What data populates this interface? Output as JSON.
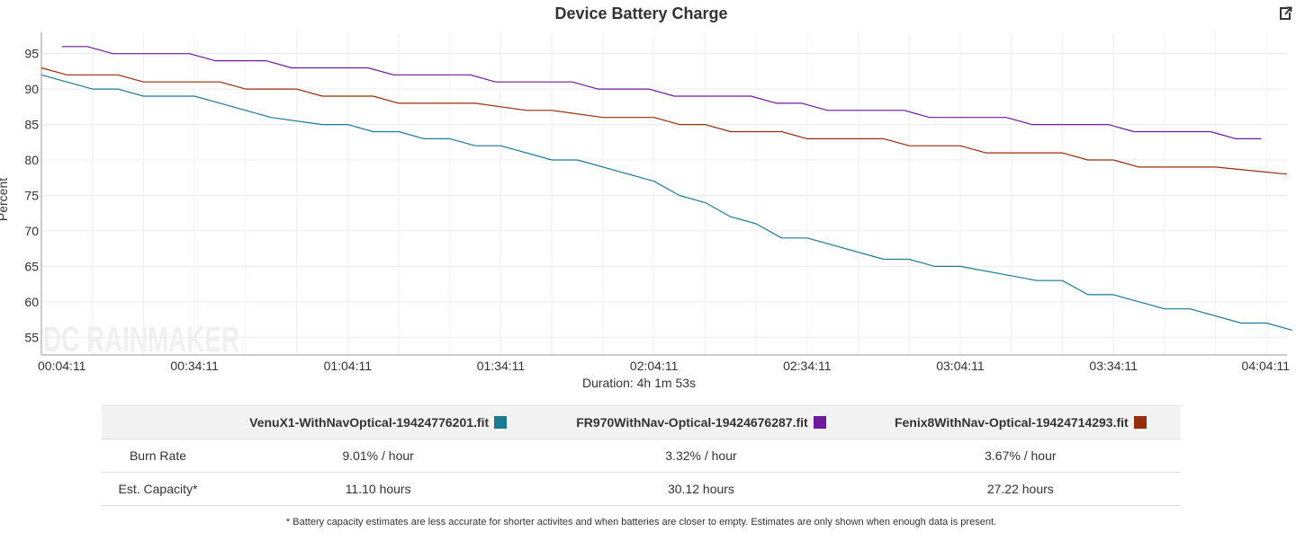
{
  "chart_data": {
    "type": "line",
    "title": "Device Battery Charge",
    "ylabel": "Percent",
    "xlabel": "Duration: 4h 1m 53s",
    "ylim": [
      52.5,
      98
    ],
    "yticks": [
      55,
      60,
      65,
      70,
      75,
      80,
      85,
      90,
      95
    ],
    "xlim": [
      "00:04:11",
      "04:08:11"
    ],
    "x_tick_labels": [
      "00:04:11",
      "00:34:11",
      "01:04:11",
      "01:34:11",
      "02:04:11",
      "02:34:11",
      "03:04:11",
      "03:34:11",
      "04:04:11"
    ],
    "grid": true,
    "watermark": "DC RAINMAKER",
    "series": [
      {
        "name": "VenuX1-WithNavOptical-19424776201.fit",
        "color": "#1d7a95",
        "points": [
          [
            "00:04:11",
            92
          ],
          [
            "00:14:11",
            90
          ],
          [
            "00:19:11",
            90
          ],
          [
            "00:24:11",
            89
          ],
          [
            "00:34:11",
            89
          ],
          [
            "00:44:11",
            87
          ],
          [
            "00:49:11",
            86
          ],
          [
            "00:59:11",
            85
          ],
          [
            "01:04:11",
            85
          ],
          [
            "01:09:11",
            84
          ],
          [
            "01:14:11",
            84
          ],
          [
            "01:19:11",
            83
          ],
          [
            "01:24:11",
            83
          ],
          [
            "01:29:11",
            82
          ],
          [
            "01:34:11",
            82
          ],
          [
            "01:44:11",
            80
          ],
          [
            "01:49:11",
            80
          ],
          [
            "02:04:11",
            77
          ],
          [
            "02:09:11",
            75
          ],
          [
            "02:14:11",
            74
          ],
          [
            "02:19:11",
            72
          ],
          [
            "02:24:11",
            71
          ],
          [
            "02:29:11",
            69
          ],
          [
            "02:34:11",
            69
          ],
          [
            "02:49:11",
            66
          ],
          [
            "02:54:11",
            66
          ],
          [
            "02:59:11",
            65
          ],
          [
            "03:04:11",
            65
          ],
          [
            "03:19:11",
            63
          ],
          [
            "03:24:11",
            63
          ],
          [
            "03:29:11",
            61
          ],
          [
            "03:34:11",
            61
          ],
          [
            "03:44:11",
            59
          ],
          [
            "03:49:11",
            59
          ],
          [
            "03:59:11",
            57
          ],
          [
            "04:04:11",
            57
          ],
          [
            "04:09:11",
            56
          ]
        ]
      },
      {
        "name": "FR970WithNav-Optical-19424676287.fit",
        "color": "#6d1a9c",
        "points": [
          [
            "00:08:11",
            96
          ],
          [
            "00:13:11",
            96
          ],
          [
            "00:18:11",
            95
          ],
          [
            "00:33:11",
            95
          ],
          [
            "00:38:11",
            94
          ],
          [
            "00:48:11",
            94
          ],
          [
            "00:53:11",
            93
          ],
          [
            "01:08:11",
            93
          ],
          [
            "01:13:11",
            92
          ],
          [
            "01:28:11",
            92
          ],
          [
            "01:33:11",
            91
          ],
          [
            "01:48:11",
            91
          ],
          [
            "01:53:11",
            90
          ],
          [
            "02:03:11",
            90
          ],
          [
            "02:08:11",
            89
          ],
          [
            "02:23:11",
            89
          ],
          [
            "02:28:11",
            88
          ],
          [
            "02:33:11",
            88
          ],
          [
            "02:38:11",
            87
          ],
          [
            "02:53:11",
            87
          ],
          [
            "02:58:11",
            86
          ],
          [
            "03:13:11",
            86
          ],
          [
            "03:18:11",
            85
          ],
          [
            "03:33:11",
            85
          ],
          [
            "03:38:11",
            84
          ],
          [
            "03:53:11",
            84
          ],
          [
            "03:58:11",
            83
          ],
          [
            "04:03:11",
            83
          ]
        ]
      },
      {
        "name": "Fenix8WithNav-Optical-19424714293.fit",
        "color": "#962d0c",
        "points": [
          [
            "00:04:11",
            93
          ],
          [
            "00:09:11",
            92
          ],
          [
            "00:19:11",
            92
          ],
          [
            "00:24:11",
            91
          ],
          [
            "00:39:11",
            91
          ],
          [
            "00:44:11",
            90
          ],
          [
            "00:54:11",
            90
          ],
          [
            "00:59:11",
            89
          ],
          [
            "01:09:11",
            89
          ],
          [
            "01:14:11",
            88
          ],
          [
            "01:29:11",
            88
          ],
          [
            "01:39:11",
            87
          ],
          [
            "01:44:11",
            87
          ],
          [
            "01:54:11",
            86
          ],
          [
            "02:04:11",
            86
          ],
          [
            "02:09:11",
            85
          ],
          [
            "02:14:11",
            85
          ],
          [
            "02:19:11",
            84
          ],
          [
            "02:29:11",
            84
          ],
          [
            "02:34:11",
            83
          ],
          [
            "02:49:11",
            83
          ],
          [
            "02:54:11",
            82
          ],
          [
            "03:04:11",
            82
          ],
          [
            "03:09:11",
            81
          ],
          [
            "03:24:11",
            81
          ],
          [
            "03:29:11",
            80
          ],
          [
            "03:34:11",
            80
          ],
          [
            "03:39:11",
            79
          ],
          [
            "03:54:11",
            79
          ],
          [
            "04:08:11",
            78
          ]
        ]
      }
    ]
  },
  "table": {
    "headers": [
      "",
      "VenuX1-WithNavOptical-19424776201.fit",
      "FR970WithNav-Optical-19424676287.fit",
      "Fenix8WithNav-Optical-19424714293.fit"
    ],
    "rows": [
      {
        "label": "Burn Rate",
        "values": [
          "9.01% / hour",
          "3.32% / hour",
          "3.67% / hour"
        ]
      },
      {
        "label": "Est. Capacity*",
        "values": [
          "11.10 hours",
          "30.12 hours",
          "27.22 hours"
        ]
      }
    ]
  },
  "footnote": "* Battery capacity estimates are less accurate for shorter activites and when batteries are closer to empty. Estimates are only shown when enough data is present.",
  "icons": {
    "export": "external-link-icon"
  }
}
